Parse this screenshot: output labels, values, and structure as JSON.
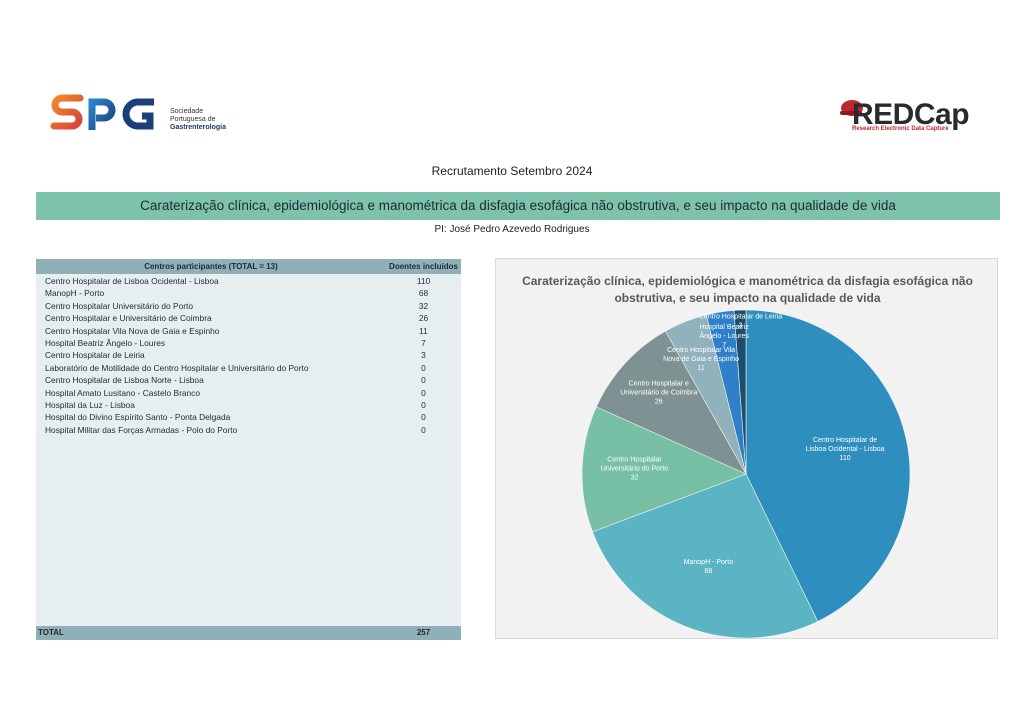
{
  "header": {
    "spg_logo": {
      "mark": "SPG",
      "line1": "Sociedade",
      "line2": "Portuguesa de",
      "line3": "Gastrenterologia"
    },
    "redcap_logo": {
      "mark": "REDCap",
      "tagline": "Research Electronic Data Capture"
    },
    "recruitment_title": "Recrutamento Setembro 2024",
    "study_title": "Caraterização clínica, epidemiológica e manométrica da disfagia esofágica não obstrutiva, e seu impacto na qualidade de vida",
    "pi": "PI: José Pedro Azevedo Rodrigues"
  },
  "table": {
    "header_centers": "Centros participantes (TOTAL = 13)",
    "header_patients": "Doentes incluídos",
    "rows": [
      {
        "name": "Centro Hospitalar de Lisboa Ocidental - Lisboa",
        "value": "110"
      },
      {
        "name": "ManopH - Porto",
        "value": "68"
      },
      {
        "name": "Centro Hospitalar Universitário do Porto",
        "value": "32"
      },
      {
        "name": "Centro Hospitalar e Universitário de Coimbra",
        "value": "26"
      },
      {
        "name": "Centro Hospitalar Vila Nova de Gaia e Espinho",
        "value": "11"
      },
      {
        "name": "Hospital Beatriz Ângelo - Loures",
        "value": "7"
      },
      {
        "name": "Centro Hospitalar de Leiria",
        "value": "3"
      },
      {
        "name": "Laboratório de Motilidade do Centro Hospitalar e Universitário do Porto",
        "value": "0"
      },
      {
        "name": "Centro Hospitalar de Lisboa Norte - Lisboa",
        "value": "0"
      },
      {
        "name": "Hospital Amato Lusitano - Castelo Branco",
        "value": "0"
      },
      {
        "name": "Hospital da Luz - Lisboa",
        "value": "0"
      },
      {
        "name": "Hospital do Divino Espírito Santo - Ponta Delgada",
        "value": "0"
      },
      {
        "name": "Hospital Militar das Forças Armadas - Polo do Porto",
        "value": "0"
      }
    ],
    "total_label": "TOTAL",
    "total_value": "257"
  },
  "chart_data": {
    "type": "pie",
    "title": "Caraterização clínica, epidemiológica e manométrica da disfagia esofágica não obstrutiva, e seu impacto na qualidade de vida",
    "slices": [
      {
        "label_lines": [
          "Centro Hospitalar de",
          "Lisboa Ocidental - Lisboa"
        ],
        "value": 110,
        "color": "#2e8fbf"
      },
      {
        "label_lines": [
          "ManopH - Porto"
        ],
        "value": 68,
        "color": "#5ab4c4"
      },
      {
        "label_lines": [
          "Centro Hospitalar",
          "Universitário do Porto"
        ],
        "value": 32,
        "color": "#77c0a5"
      },
      {
        "label_lines": [
          "Centro Hospitalar e",
          "Universitário de Coimbra"
        ],
        "value": 26,
        "color": "#7e9293"
      },
      {
        "label_lines": [
          "Centro Hospitalar Vila",
          "Nova de Gaia e Espinho"
        ],
        "value": 11,
        "color": "#8fb2bd"
      },
      {
        "label_lines": [
          "Hospital Beatriz",
          "Ângelo - Loures"
        ],
        "value": 7,
        "color": "#2f80c9"
      },
      {
        "label_lines": [
          "Centro Hospitalar de Leiria"
        ],
        "value": 3,
        "color": "#1c4f6b"
      }
    ],
    "legend": "none"
  }
}
